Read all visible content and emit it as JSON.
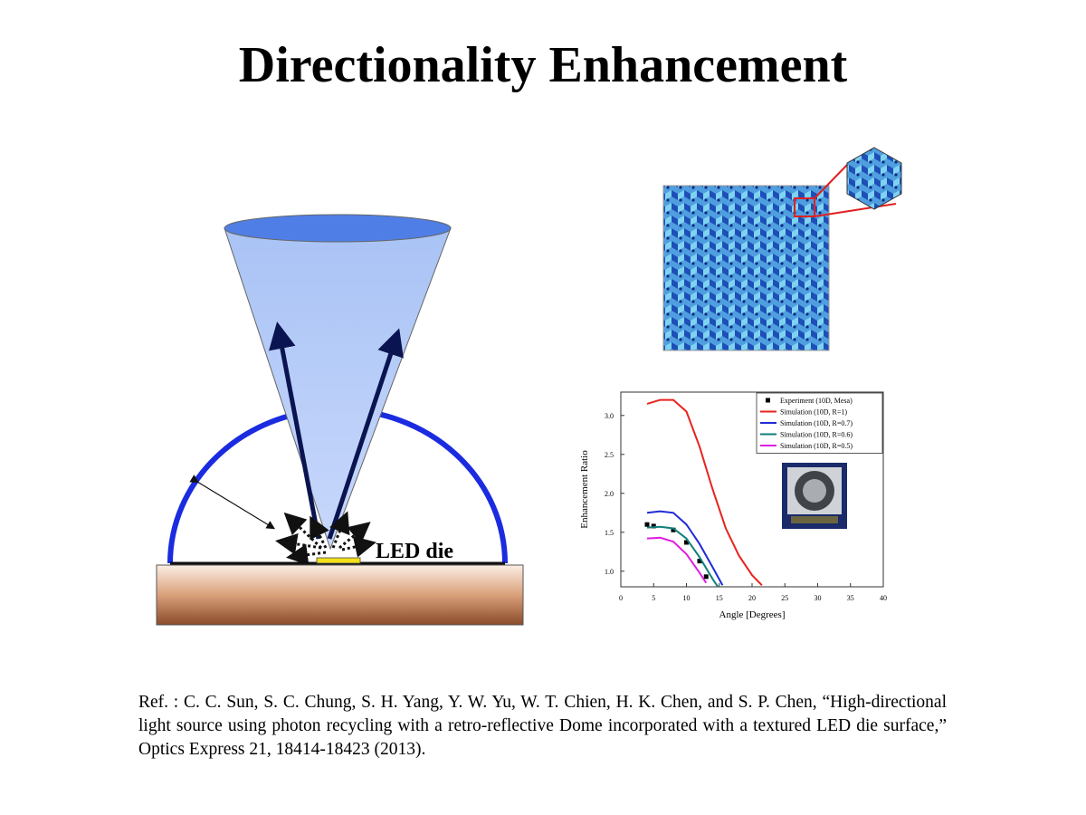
{
  "title": "Directionality Enhancement",
  "diagram": {
    "label": "LED die"
  },
  "chart_data": {
    "type": "line",
    "x_label": "Angle [Degrees]",
    "y_label": "Enhancement Ratio",
    "xlim": [
      0,
      40
    ],
    "xticks": [
      0,
      5,
      10,
      15,
      20,
      25,
      30,
      35,
      40
    ],
    "ylim": [
      0.8,
      3.3
    ],
    "yticks": [
      {
        "value": 1,
        "label": "1.0"
      },
      1.5,
      {
        "value": 2,
        "label": "2.0"
      },
      2.5,
      {
        "value": 3,
        "label": "3.0"
      }
    ],
    "series": [
      {
        "name": "Experiment (10D, Mesa)",
        "color": "#000000",
        "marker": "square",
        "line": false,
        "x": [
          4,
          5,
          8,
          10,
          12,
          13
        ],
        "values": [
          1.6,
          1.58,
          1.53,
          1.37,
          1.13,
          0.93
        ]
      },
      {
        "name": "Simulation (10D, R=1)",
        "color": "#e8231e",
        "line": true,
        "x": [
          4,
          6,
          8,
          10,
          12,
          14,
          16,
          18,
          20,
          21.5
        ],
        "values": [
          3.15,
          3.2,
          3.2,
          3.05,
          2.6,
          2.05,
          1.55,
          1.2,
          0.95,
          0.82
        ]
      },
      {
        "name": "Simulation (10D, R=0.7)",
        "color": "#1f2bd6",
        "line": true,
        "x": [
          4,
          6,
          8,
          10,
          12,
          14,
          15.5
        ],
        "values": [
          1.75,
          1.77,
          1.75,
          1.6,
          1.35,
          1.05,
          0.82
        ]
      },
      {
        "name": "Simulation (10D, R=0.6)",
        "color": "#0f7f7a",
        "line": true,
        "x": [
          4,
          6,
          8,
          10,
          12,
          14,
          14.8
        ],
        "values": [
          1.56,
          1.57,
          1.55,
          1.42,
          1.18,
          0.9,
          0.8
        ]
      },
      {
        "name": "Simulation (10D, R=0.5)",
        "color": "#e01ee0",
        "line": true,
        "x": [
          4,
          6,
          8,
          10,
          12,
          13
        ],
        "values": [
          1.42,
          1.43,
          1.38,
          1.22,
          0.98,
          0.85
        ]
      }
    ]
  },
  "reference": "Ref. : C. C. Sun, S. C. Chung, S. H. Yang, Y. W. Yu, W. T. Chien, H. K. Chen, and S. P. Chen, “High-directional light source using photon recycling with a retro-reflective Dome incorporated with a textured LED die surface,” Optics Express 21, 18414-18423 (2013)."
}
